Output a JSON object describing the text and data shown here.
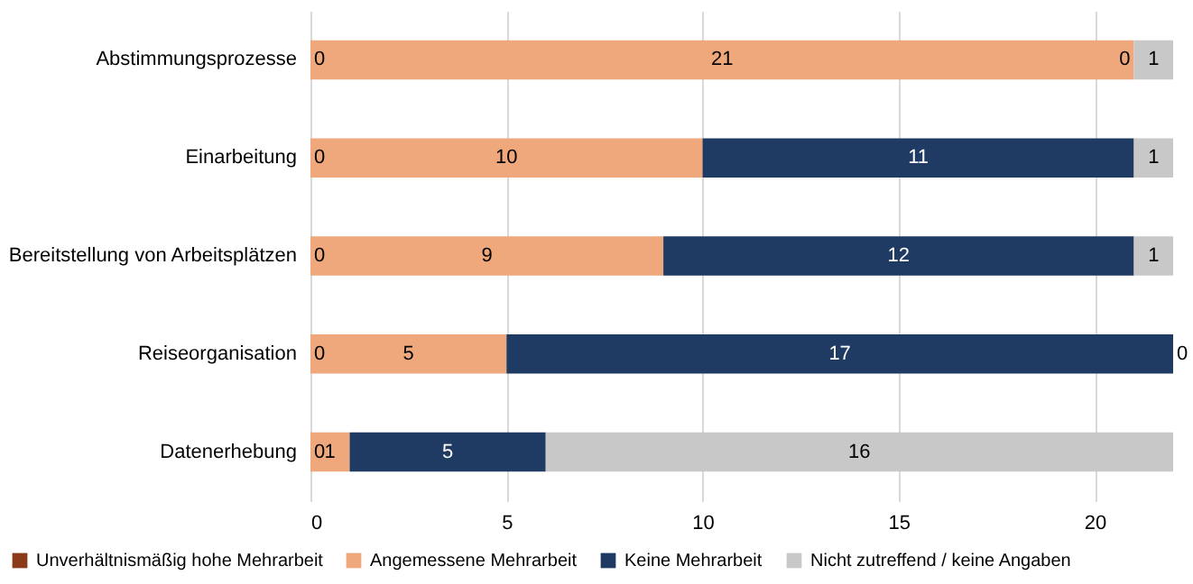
{
  "chart_data": {
    "type": "bar",
    "orientation": "horizontal",
    "stacked": true,
    "categories": [
      "Abstimmungsprozesse",
      "Einarbeitung",
      "Bereitstellung von Arbeitsplätzen",
      "Reiseorganisation",
      "Datenerhebung"
    ],
    "series": [
      {
        "name": "Unverhältnismäßig hohe Mehrarbeit",
        "color": "#8b3a1a",
        "values": [
          0,
          0,
          0,
          0,
          0
        ],
        "value_labels": [
          null,
          null,
          null,
          null,
          null
        ]
      },
      {
        "name": "Angemessene Mehrarbeit",
        "color": "#efa77c",
        "values": [
          21,
          10,
          9,
          5,
          1
        ],
        "value_labels": [
          "21",
          "10",
          "9",
          "5",
          "1"
        ]
      },
      {
        "name": "Keine Mehrarbeit",
        "color": "#1f3a63",
        "values": [
          0,
          11,
          12,
          17,
          5
        ],
        "value_labels": [
          null,
          "11",
          "12",
          "17",
          "5"
        ]
      },
      {
        "name": "Nicht zutreffend / keine Angaben",
        "color": "#c8c8c8",
        "values": [
          1,
          1,
          1,
          0,
          16
        ],
        "value_labels": [
          "1",
          "1",
          "1",
          null,
          "16"
        ]
      }
    ],
    "annotations": [
      {
        "text": "0",
        "x": 0,
        "y": "Abstimmungsprozesse"
      },
      {
        "text": "0",
        "x": 0,
        "y": "Einarbeitung"
      },
      {
        "text": "0",
        "x": 0,
        "y": "Bereitstellung von Arbeitsplätzen"
      },
      {
        "text": "0",
        "x": 0,
        "y": "Reiseorganisation"
      },
      {
        "text": "0",
        "x": 0,
        "y": "Datenerhebung"
      },
      {
        "text": "0",
        "x": 21,
        "y": "Abstimmungsprozesse"
      },
      {
        "text": "0",
        "x": 22,
        "y": "Reiseorganisation"
      }
    ],
    "xlim": [
      0,
      22
    ],
    "xticks": [
      0,
      5,
      10,
      15,
      20
    ],
    "grid": "x",
    "legend": "bottom"
  }
}
